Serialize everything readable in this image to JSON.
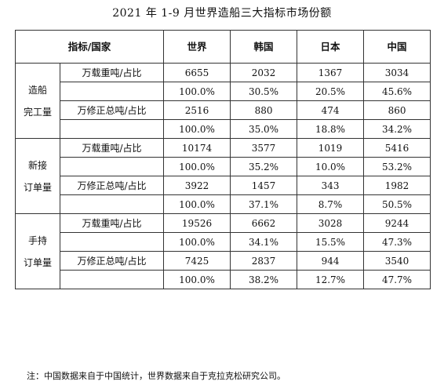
{
  "title": "2021 年 1-9 月世界造船三大指标市场份额",
  "header": {
    "indicator": "指标/国家",
    "world": "世界",
    "korea": "韩国",
    "japan": "日本",
    "china": "中国"
  },
  "groups": [
    {
      "line1": "造船",
      "line2": "完工量",
      "metrics": [
        {
          "label": "万载重吨/占比",
          "values": [
            "6655",
            "2032",
            "1367",
            "3034"
          ],
          "shares": [
            "100.0%",
            "30.5%",
            "20.5%",
            "45.6%"
          ]
        },
        {
          "label": "万修正总吨/占比",
          "values": [
            "2516",
            "880",
            "474",
            "860"
          ],
          "shares": [
            "100.0%",
            "35.0%",
            "18.8%",
            "34.2%"
          ]
        }
      ]
    },
    {
      "line1": "新接",
      "line2": "订单量",
      "metrics": [
        {
          "label": "万载重吨/占比",
          "values": [
            "10174",
            "3577",
            "1019",
            "5416"
          ],
          "shares": [
            "100.0%",
            "35.2%",
            "10.0%",
            "53.2%"
          ]
        },
        {
          "label": "万修正总吨/占比",
          "values": [
            "3922",
            "1457",
            "343",
            "1982"
          ],
          "shares": [
            "100.0%",
            "37.1%",
            "8.7%",
            "50.5%"
          ]
        }
      ]
    },
    {
      "line1": "手持",
      "line2": "订单量",
      "metrics": [
        {
          "label": "万载重吨/占比",
          "values": [
            "19526",
            "6662",
            "3028",
            "9244"
          ],
          "shares": [
            "100.0%",
            "34.1%",
            "15.5%",
            "47.3%"
          ]
        },
        {
          "label": "万修正总吨/占比",
          "values": [
            "7425",
            "2837",
            "944",
            "3540"
          ],
          "shares": [
            "100.0%",
            "38.2%",
            "12.7%",
            "47.7%"
          ]
        }
      ]
    }
  ],
  "note": "注：中国数据来自于中国统计，世界数据来自于克拉克松研究公司。"
}
